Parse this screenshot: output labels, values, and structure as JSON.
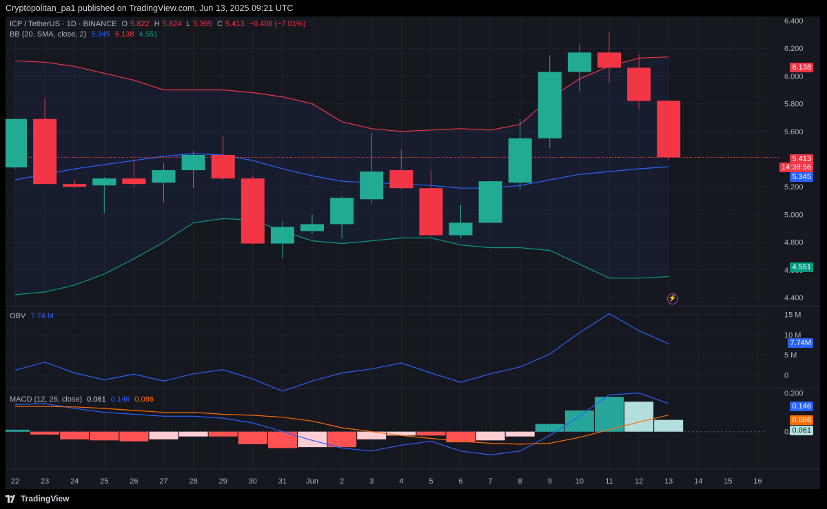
{
  "header": "Cryptopolitan_pa1 published on TradingView.com, Jun 13, 2025 09:21 UTC",
  "footer": {
    "logo_text": "TradingView",
    "logo_icon": "tradingview-logo-icon"
  },
  "legend": {
    "symbol": "ICP / TetherUS · 1D · BINANCE",
    "o_label": "O",
    "o": "5.822",
    "h_label": "H",
    "h": "5.824",
    "l_label": "L",
    "l": "5.395",
    "c_label": "C",
    "c": "5.413",
    "change": "−0.408 (−7.01%)",
    "bb_label": "BB (20, SMA, close, 2)",
    "bb_basis": "5.345",
    "bb_upper": "6.138",
    "bb_lower": "4.551",
    "obv_label": "OBV",
    "obv": "7.74 M",
    "macd_label": "MACD (12, 26, close)",
    "macd_hist": "0.061",
    "macd": "0.146",
    "signal": "0.086"
  },
  "price_tags": {
    "bb_upper": "6.138",
    "last": "5.413",
    "countdown": "14:38:56",
    "bb_basis": "5.345",
    "bb_lower": "4.551",
    "obv": "7.74M",
    "macd": "0.146",
    "signal": "0.086",
    "hist": "0.061"
  },
  "colors": {
    "up": "#22ab94",
    "down": "#f23645",
    "bb_basis": "#2962ff",
    "bb_upper": "#f23645",
    "bb_lower": "#089981",
    "obv": "#2962ff",
    "macd": "#2962ff",
    "signal": "#ff6d00",
    "hist_up_strong": "#26a69a",
    "hist_up_weak": "#b2dfdb",
    "hist_down_strong": "#ff5252",
    "hist_down_weak": "#ffcdd2"
  },
  "chart_data": {
    "type": "candlestick",
    "x_labels": [
      "22",
      "23",
      "24",
      "25",
      "26",
      "27",
      "28",
      "29",
      "30",
      "31",
      "Jun",
      "2",
      "3",
      "4",
      "5",
      "6",
      "7",
      "8",
      "9",
      "10",
      "11",
      "12",
      "13",
      "14",
      "15",
      "16"
    ],
    "price_axis": {
      "ticks": [
        "6.400",
        "6.200",
        "6.000",
        "5.800",
        "5.600",
        "5.200",
        "5.000",
        "4.800",
        "4.600",
        "4.400"
      ],
      "range": [
        4.35,
        6.43
      ]
    },
    "candles": [
      {
        "o": 5.34,
        "h": 5.69,
        "l": 5.33,
        "c": 5.69
      },
      {
        "o": 5.69,
        "h": 5.84,
        "l": 5.22,
        "c": 5.22
      },
      {
        "o": 5.22,
        "h": 5.25,
        "l": 5.19,
        "c": 5.2
      },
      {
        "o": 5.21,
        "h": 5.27,
        "l": 5.01,
        "c": 5.26
      },
      {
        "o": 5.26,
        "h": 5.4,
        "l": 5.2,
        "c": 5.22
      },
      {
        "o": 5.23,
        "h": 5.37,
        "l": 5.09,
        "c": 5.32
      },
      {
        "o": 5.32,
        "h": 5.46,
        "l": 5.19,
        "c": 5.43
      },
      {
        "o": 5.43,
        "h": 5.57,
        "l": 5.25,
        "c": 5.26
      },
      {
        "o": 5.26,
        "h": 5.28,
        "l": 4.78,
        "c": 4.79
      },
      {
        "o": 4.79,
        "h": 4.95,
        "l": 4.68,
        "c": 4.91
      },
      {
        "o": 4.88,
        "h": 5.0,
        "l": 4.86,
        "c": 4.93
      },
      {
        "o": 4.93,
        "h": 5.13,
        "l": 4.83,
        "c": 5.12
      },
      {
        "o": 5.11,
        "h": 5.59,
        "l": 5.08,
        "c": 5.31
      },
      {
        "o": 5.32,
        "h": 5.47,
        "l": 5.18,
        "c": 5.19
      },
      {
        "o": 5.19,
        "h": 5.32,
        "l": 4.84,
        "c": 4.85
      },
      {
        "o": 4.85,
        "h": 5.07,
        "l": 4.83,
        "c": 4.94
      },
      {
        "o": 4.94,
        "h": 5.24,
        "l": 4.94,
        "c": 5.24
      },
      {
        "o": 5.23,
        "h": 5.69,
        "l": 5.18,
        "c": 5.55
      },
      {
        "o": 5.55,
        "h": 6.15,
        "l": 5.48,
        "c": 6.03
      },
      {
        "o": 6.03,
        "h": 6.23,
        "l": 5.89,
        "c": 6.17
      },
      {
        "o": 6.17,
        "h": 6.32,
        "l": 5.95,
        "c": 6.06
      },
      {
        "o": 6.06,
        "h": 6.16,
        "l": 5.76,
        "c": 5.82
      },
      {
        "o": 5.822,
        "h": 5.824,
        "l": 5.395,
        "c": 5.413
      }
    ],
    "bb_upper": [
      6.11,
      6.1,
      6.07,
      6.02,
      5.97,
      5.9,
      5.9,
      5.9,
      5.88,
      5.85,
      5.8,
      5.67,
      5.62,
      5.6,
      5.61,
      5.62,
      5.61,
      5.65,
      5.84,
      5.98,
      6.07,
      6.13,
      6.138
    ],
    "bb_basis": [
      5.25,
      5.29,
      5.33,
      5.36,
      5.39,
      5.42,
      5.44,
      5.43,
      5.39,
      5.33,
      5.28,
      5.24,
      5.23,
      5.22,
      5.21,
      5.19,
      5.19,
      5.21,
      5.25,
      5.29,
      5.31,
      5.33,
      5.345
    ],
    "bb_lower": [
      4.42,
      4.44,
      4.49,
      4.57,
      4.68,
      4.8,
      4.94,
      4.97,
      4.96,
      4.88,
      4.81,
      4.79,
      4.81,
      4.83,
      4.83,
      4.78,
      4.76,
      4.76,
      4.74,
      4.64,
      4.54,
      4.54,
      4.551
    ],
    "obv": {
      "ticks": [
        "15 M",
        "10 M",
        "5 M",
        "0"
      ],
      "range": [
        -3,
        17
      ],
      "values": [
        1.2,
        3.2,
        0.5,
        -1.2,
        0.2,
        -1.5,
        0.3,
        1.3,
        -1.0,
        -4.0,
        -1.5,
        0.5,
        1.5,
        3.0,
        0.5,
        -1.8,
        0.3,
        2.0,
        5.2,
        10.5,
        15.2,
        11.0,
        7.74
      ]
    },
    "macd": {
      "ticks": [
        "0.200",
        "0.000"
      ],
      "range": [
        -0.19,
        0.22
      ],
      "macd": [
        0.14,
        0.145,
        0.12,
        0.1,
        0.09,
        0.08,
        0.08,
        0.07,
        0.045,
        0.0,
        -0.045,
        -0.085,
        -0.1,
        -0.07,
        -0.05,
        -0.1,
        -0.12,
        -0.1,
        -0.02,
        0.08,
        0.19,
        0.2,
        0.146
      ],
      "signal": [
        0.13,
        0.13,
        0.128,
        0.12,
        0.11,
        0.1,
        0.1,
        0.09,
        0.085,
        0.075,
        0.055,
        0.02,
        0.0,
        -0.02,
        -0.035,
        -0.05,
        -0.06,
        -0.065,
        -0.06,
        -0.03,
        0.01,
        0.05,
        0.086
      ],
      "hist": [
        0.01,
        -0.015,
        -0.04,
        -0.045,
        -0.05,
        -0.04,
        -0.025,
        -0.025,
        -0.065,
        -0.085,
        -0.08,
        -0.08,
        -0.04,
        -0.02,
        -0.02,
        -0.055,
        -0.045,
        -0.025,
        0.04,
        0.11,
        0.18,
        0.155,
        0.061
      ]
    }
  }
}
